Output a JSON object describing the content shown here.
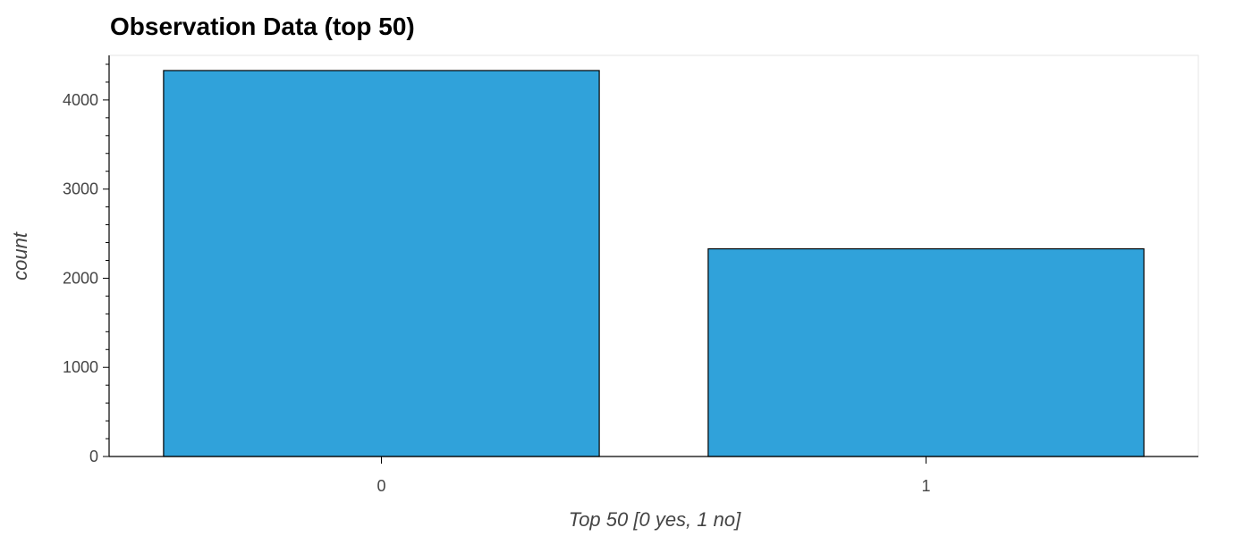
{
  "chart_data": {
    "type": "bar",
    "title": "Observation Data (top 50)",
    "xlabel": "Top 50 [0 yes, 1 no]",
    "ylabel": "count",
    "categories": [
      "0",
      "1"
    ],
    "values": [
      4330,
      2330
    ],
    "ylim": [
      0,
      4500
    ],
    "yticks": [
      0,
      1000,
      2000,
      3000,
      4000
    ],
    "bar_color": "#30a2da",
    "bar_edge_color": "#000000",
    "grid": false
  }
}
